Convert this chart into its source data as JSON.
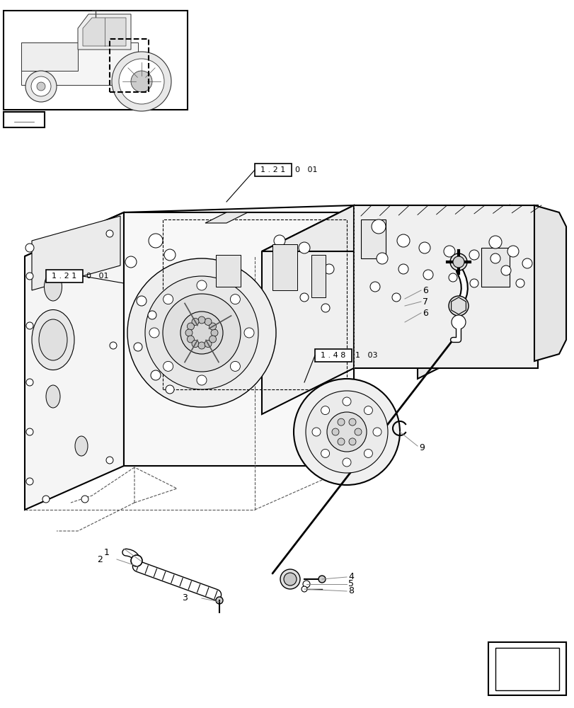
{
  "bg_color": "#ffffff",
  "line_color": "#000000",
  "dashed_color": "#555555",
  "fig_width": 8.12,
  "fig_height": 10.0,
  "dpi": 100
}
